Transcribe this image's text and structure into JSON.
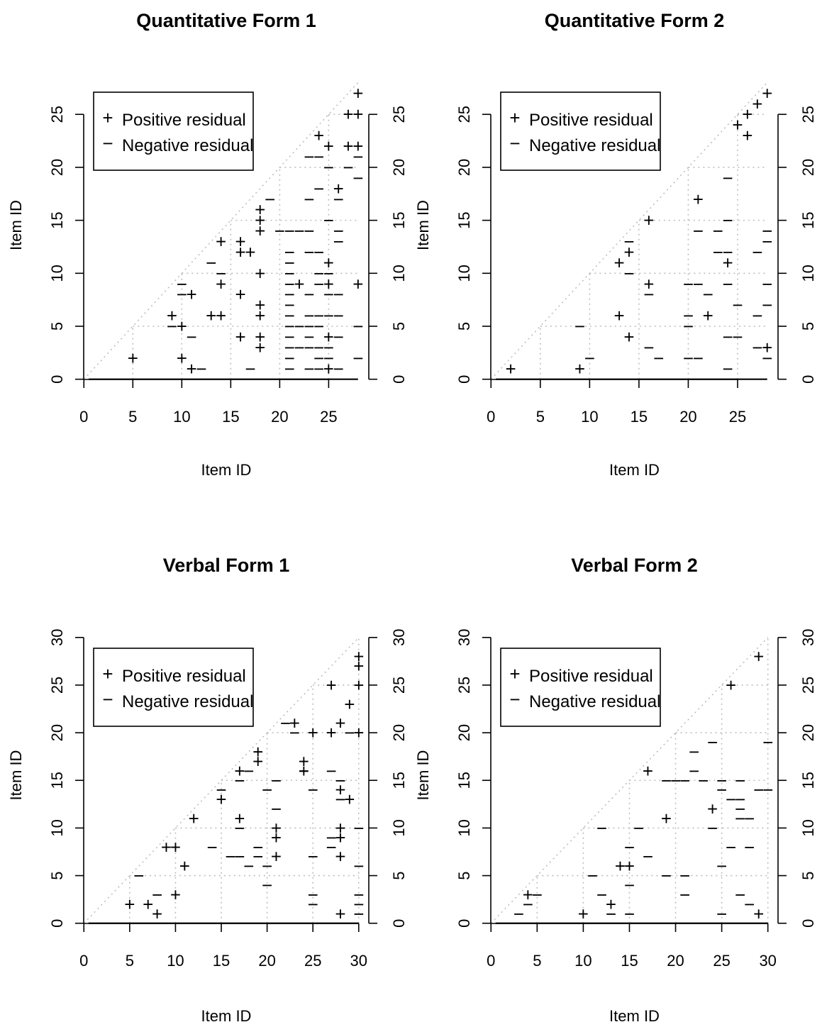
{
  "legend": {
    "positive": "Positive residual",
    "negative": "Negative residual",
    "position": "top-left"
  },
  "chart_data": [
    {
      "type": "scatter",
      "title": "Quantitative Form 1",
      "xlabel": "Item ID",
      "ylabel": "Item ID",
      "xlim": [
        0,
        28
      ],
      "ylim": [
        0,
        28
      ],
      "xticks": [
        0,
        5,
        10,
        15,
        20,
        25
      ],
      "yticks": [
        0,
        5,
        10,
        15,
        20,
        25
      ],
      "grid": true,
      "positive": [
        [
          5,
          2
        ],
        [
          9,
          6
        ],
        [
          10,
          5
        ],
        [
          10,
          2
        ],
        [
          11,
          8
        ],
        [
          11,
          1
        ],
        [
          13,
          6
        ],
        [
          14,
          6
        ],
        [
          14,
          9
        ],
        [
          14,
          13
        ],
        [
          16,
          13
        ],
        [
          16,
          12
        ],
        [
          16,
          8
        ],
        [
          16,
          4
        ],
        [
          17,
          12
        ],
        [
          18,
          16
        ],
        [
          18,
          15
        ],
        [
          18,
          14
        ],
        [
          18,
          10
        ],
        [
          18,
          7
        ],
        [
          18,
          6
        ],
        [
          18,
          4
        ],
        [
          18,
          3
        ],
        [
          22,
          9
        ],
        [
          24,
          23
        ],
        [
          25,
          22
        ],
        [
          25,
          11
        ],
        [
          25,
          9
        ],
        [
          25,
          4
        ],
        [
          25,
          1
        ],
        [
          26,
          18
        ],
        [
          27,
          25
        ],
        [
          27,
          22
        ],
        [
          28,
          27
        ],
        [
          28,
          25
        ],
        [
          28,
          22
        ],
        [
          28,
          9
        ]
      ],
      "negative": [
        [
          9,
          5
        ],
        [
          10,
          8
        ],
        [
          10,
          9
        ],
        [
          11,
          4
        ],
        [
          12,
          1
        ],
        [
          13,
          11
        ],
        [
          14,
          10
        ],
        [
          17,
          1
        ],
        [
          19,
          17
        ],
        [
          20,
          14
        ],
        [
          21,
          14
        ],
        [
          21,
          12
        ],
        [
          21,
          11
        ],
        [
          21,
          10
        ],
        [
          21,
          9
        ],
        [
          21,
          8
        ],
        [
          21,
          7
        ],
        [
          21,
          6
        ],
        [
          21,
          5
        ],
        [
          21,
          4
        ],
        [
          21,
          3
        ],
        [
          21,
          2
        ],
        [
          21,
          1
        ],
        [
          22,
          14
        ],
        [
          22,
          5
        ],
        [
          22,
          3
        ],
        [
          23,
          14
        ],
        [
          23,
          12
        ],
        [
          23,
          8
        ],
        [
          23,
          6
        ],
        [
          23,
          5
        ],
        [
          23,
          4
        ],
        [
          23,
          3
        ],
        [
          23,
          1
        ],
        [
          23,
          21
        ],
        [
          23,
          17
        ],
        [
          24,
          21
        ],
        [
          24,
          18
        ],
        [
          24,
          12
        ],
        [
          24,
          10
        ],
        [
          24,
          9
        ],
        [
          24,
          6
        ],
        [
          24,
          5
        ],
        [
          24,
          3
        ],
        [
          24,
          1
        ],
        [
          24,
          2
        ],
        [
          25,
          20
        ],
        [
          25,
          15
        ],
        [
          25,
          10
        ],
        [
          25,
          8
        ],
        [
          25,
          6
        ],
        [
          25,
          3
        ],
        [
          25,
          2
        ],
        [
          26,
          17
        ],
        [
          26,
          14
        ],
        [
          26,
          13
        ],
        [
          26,
          8
        ],
        [
          26,
          6
        ],
        [
          26,
          4
        ],
        [
          26,
          1
        ],
        [
          27,
          20
        ],
        [
          28,
          21
        ],
        [
          28,
          19
        ],
        [
          28,
          2
        ],
        [
          28,
          5
        ]
      ]
    },
    {
      "type": "scatter",
      "title": "Quantitative Form 2",
      "xlabel": "Item ID",
      "ylabel": "Item ID",
      "xlim": [
        0,
        28
      ],
      "ylim": [
        0,
        28
      ],
      "xticks": [
        0,
        5,
        10,
        15,
        20,
        25
      ],
      "yticks": [
        0,
        5,
        10,
        15,
        20,
        25
      ],
      "grid": true,
      "positive": [
        [
          2,
          1
        ],
        [
          9,
          1
        ],
        [
          13,
          11
        ],
        [
          13,
          6
        ],
        [
          14,
          12
        ],
        [
          14,
          4
        ],
        [
          16,
          15
        ],
        [
          16,
          9
        ],
        [
          21,
          17
        ],
        [
          22,
          6
        ],
        [
          24,
          11
        ],
        [
          25,
          24
        ],
        [
          26,
          25
        ],
        [
          26,
          23
        ],
        [
          27,
          26
        ],
        [
          28,
          27
        ],
        [
          28,
          3
        ]
      ],
      "negative": [
        [
          9,
          5
        ],
        [
          10,
          2
        ],
        [
          14,
          13
        ],
        [
          14,
          10
        ],
        [
          16,
          8
        ],
        [
          16,
          3
        ],
        [
          17,
          2
        ],
        [
          20,
          9
        ],
        [
          20,
          6
        ],
        [
          20,
          5
        ],
        [
          20,
          2
        ],
        [
          21,
          14
        ],
        [
          21,
          9
        ],
        [
          21,
          2
        ],
        [
          22,
          8
        ],
        [
          23,
          14
        ],
        [
          23,
          12
        ],
        [
          24,
          19
        ],
        [
          24,
          15
        ],
        [
          24,
          12
        ],
        [
          24,
          9
        ],
        [
          24,
          4
        ],
        [
          24,
          1
        ],
        [
          25,
          7
        ],
        [
          25,
          4
        ],
        [
          27,
          12
        ],
        [
          27,
          6
        ],
        [
          27,
          3
        ],
        [
          28,
          14
        ],
        [
          28,
          13
        ],
        [
          28,
          9
        ],
        [
          28,
          7
        ],
        [
          28,
          2
        ]
      ]
    },
    {
      "type": "scatter",
      "title": "Verbal Form 1",
      "xlabel": "Item ID",
      "ylabel": "Item ID",
      "xlim": [
        0,
        30
      ],
      "ylim": [
        0,
        30
      ],
      "xticks": [
        0,
        5,
        10,
        15,
        20,
        25,
        30
      ],
      "yticks": [
        0,
        5,
        10,
        15,
        20,
        25,
        30
      ],
      "grid": true,
      "positive": [
        [
          5,
          2
        ],
        [
          7,
          2
        ],
        [
          8,
          1
        ],
        [
          9,
          8
        ],
        [
          10,
          8
        ],
        [
          10,
          3
        ],
        [
          11,
          6
        ],
        [
          12,
          11
        ],
        [
          15,
          13
        ],
        [
          17,
          16
        ],
        [
          17,
          11
        ],
        [
          19,
          18
        ],
        [
          19,
          17
        ],
        [
          21,
          10
        ],
        [
          21,
          9
        ],
        [
          21,
          7
        ],
        [
          23,
          21
        ],
        [
          24,
          17
        ],
        [
          24,
          16
        ],
        [
          25,
          20
        ],
        [
          27,
          25
        ],
        [
          27,
          20
        ],
        [
          28,
          21
        ],
        [
          28,
          14
        ],
        [
          28,
          10
        ],
        [
          28,
          9
        ],
        [
          28,
          7
        ],
        [
          28,
          1
        ],
        [
          29,
          23
        ],
        [
          29,
          13
        ],
        [
          30,
          28
        ],
        [
          30,
          27
        ],
        [
          30,
          25
        ],
        [
          30,
          20
        ]
      ],
      "negative": [
        [
          6,
          5
        ],
        [
          8,
          3
        ],
        [
          14,
          8
        ],
        [
          15,
          14
        ],
        [
          16,
          7
        ],
        [
          17,
          15
        ],
        [
          17,
          10
        ],
        [
          17,
          7
        ],
        [
          18,
          16
        ],
        [
          18,
          6
        ],
        [
          19,
          8
        ],
        [
          19,
          7
        ],
        [
          20,
          14
        ],
        [
          20,
          6
        ],
        [
          20,
          4
        ],
        [
          21,
          15
        ],
        [
          21,
          12
        ],
        [
          22,
          21
        ],
        [
          23,
          20
        ],
        [
          24,
          16
        ],
        [
          25,
          14
        ],
        [
          25,
          7
        ],
        [
          25,
          3
        ],
        [
          25,
          2
        ],
        [
          27,
          16
        ],
        [
          27,
          9
        ],
        [
          27,
          8
        ],
        [
          28,
          15
        ],
        [
          28,
          13
        ],
        [
          29,
          20
        ],
        [
          30,
          10
        ],
        [
          30,
          6
        ],
        [
          30,
          3
        ],
        [
          30,
          2
        ],
        [
          30,
          1
        ]
      ]
    },
    {
      "type": "scatter",
      "title": "Verbal Form 2",
      "xlabel": "Item ID",
      "ylabel": "Item ID",
      "xlim": [
        0,
        30
      ],
      "ylim": [
        0,
        30
      ],
      "xticks": [
        0,
        5,
        10,
        15,
        20,
        25,
        30
      ],
      "yticks": [
        0,
        5,
        10,
        15,
        20,
        25,
        30
      ],
      "grid": true,
      "positive": [
        [
          4,
          3
        ],
        [
          10,
          1
        ],
        [
          13,
          2
        ],
        [
          14,
          6
        ],
        [
          15,
          6
        ],
        [
          17,
          16
        ],
        [
          19,
          11
        ],
        [
          24,
          12
        ],
        [
          26,
          25
        ],
        [
          29,
          28
        ],
        [
          29,
          1
        ]
      ],
      "negative": [
        [
          3,
          1
        ],
        [
          4,
          2
        ],
        [
          5,
          3
        ],
        [
          11,
          5
        ],
        [
          12,
          10
        ],
        [
          12,
          3
        ],
        [
          13,
          1
        ],
        [
          15,
          8
        ],
        [
          15,
          4
        ],
        [
          15,
          1
        ],
        [
          16,
          10
        ],
        [
          17,
          7
        ],
        [
          19,
          15
        ],
        [
          19,
          5
        ],
        [
          20,
          15
        ],
        [
          21,
          15
        ],
        [
          21,
          5
        ],
        [
          21,
          3
        ],
        [
          22,
          18
        ],
        [
          22,
          16
        ],
        [
          23,
          15
        ],
        [
          24,
          19
        ],
        [
          24,
          10
        ],
        [
          25,
          15
        ],
        [
          25,
          14
        ],
        [
          25,
          6
        ],
        [
          25,
          1
        ],
        [
          26,
          13
        ],
        [
          26,
          8
        ],
        [
          27,
          15
        ],
        [
          27,
          13
        ],
        [
          27,
          12
        ],
        [
          27,
          11
        ],
        [
          27,
          3
        ],
        [
          28,
          11
        ],
        [
          28,
          8
        ],
        [
          28,
          2
        ],
        [
          29,
          14
        ],
        [
          30,
          19
        ],
        [
          30,
          14
        ]
      ]
    }
  ]
}
